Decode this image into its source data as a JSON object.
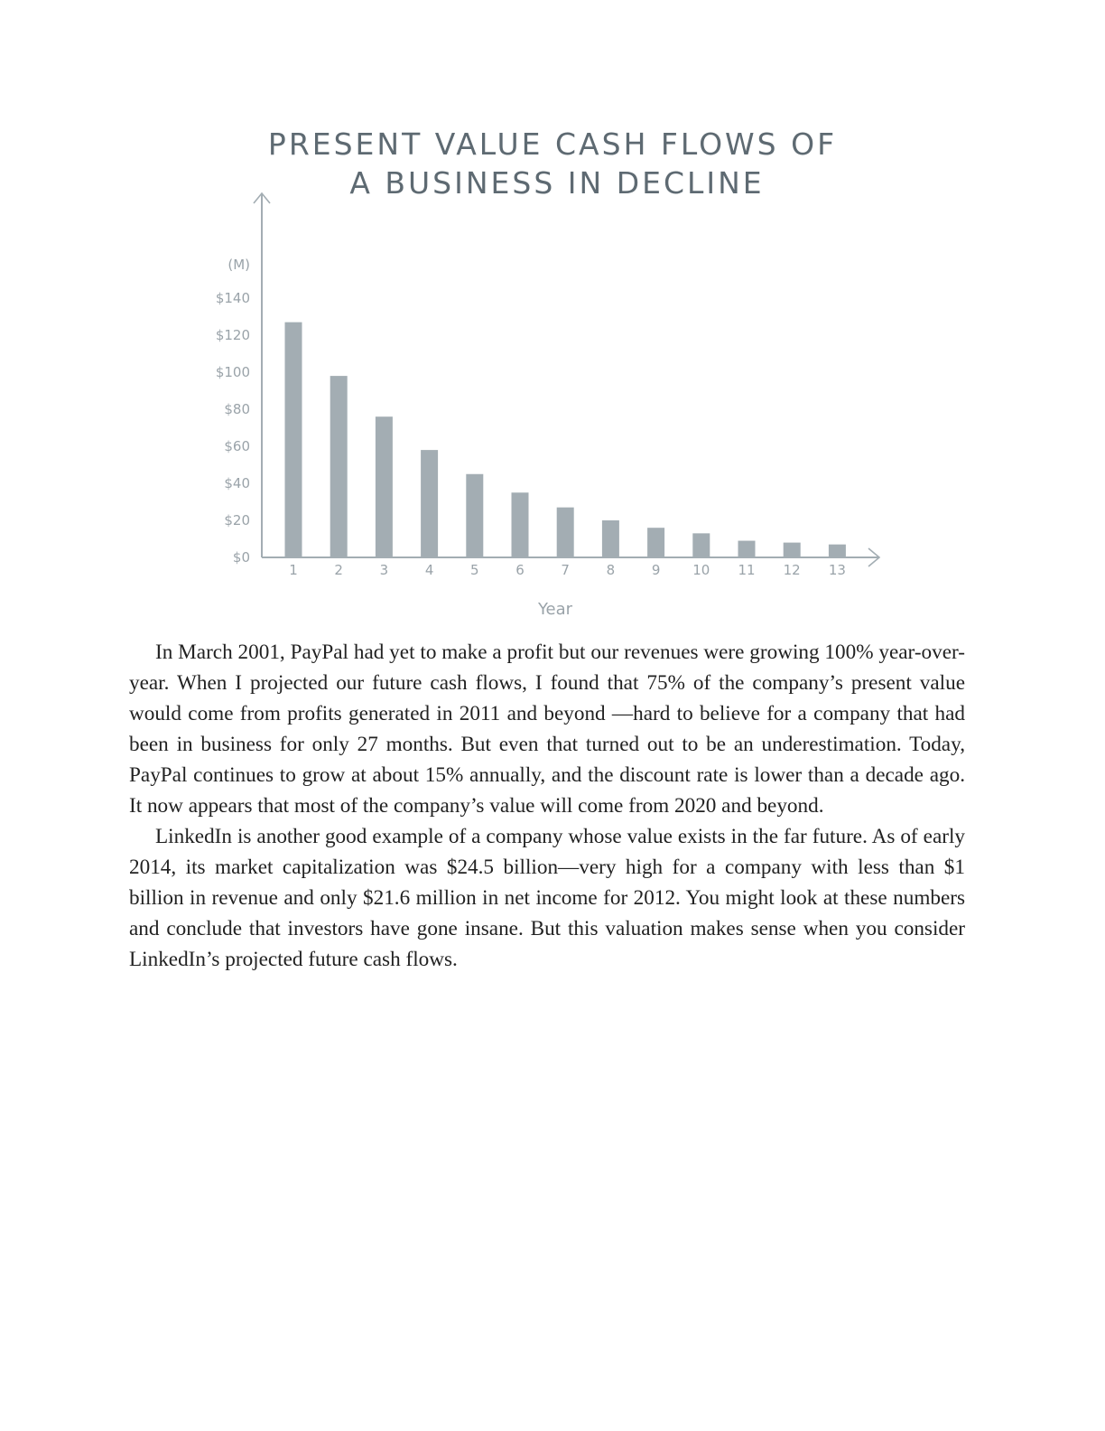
{
  "chart_data": {
    "type": "bar",
    "title_lines": [
      "PRESENT VALUE CASH FLOWS OF",
      "A BUSINESS IN DECLINE"
    ],
    "unit_label": "(M)",
    "xlabel": "Year",
    "ylabel": "",
    "categories": [
      "1",
      "2",
      "3",
      "4",
      "5",
      "6",
      "7",
      "8",
      "9",
      "10",
      "11",
      "12",
      "13"
    ],
    "values": [
      127,
      98,
      76,
      58,
      45,
      35,
      27,
      20,
      16,
      13,
      9,
      8,
      7
    ],
    "ylim": [
      0,
      140
    ],
    "yticks": [
      {
        "value": 0,
        "label": "$0"
      },
      {
        "value": 20,
        "label": "$20"
      },
      {
        "value": 40,
        "label": "$40"
      },
      {
        "value": 60,
        "label": "$60"
      },
      {
        "value": 80,
        "label": "$80"
      },
      {
        "value": 100,
        "label": "$100"
      },
      {
        "value": 120,
        "label": "$120"
      },
      {
        "value": 140,
        "label": "$140"
      }
    ],
    "grid": false,
    "bar_color": "#a3adb3",
    "axis_color": "#a3adb3"
  },
  "body": {
    "paragraphs": [
      "In March 2001, PayPal had yet to make a profit but our revenues were growing 100% year-over-year. When I projected our future cash flows, I found that 75% of the company’s present value would come from profits generated in 2011 and beyond —hard to believe for a company that had been in business for only 27 months. But even that turned out to be an underestimation. Today, PayPal continues to grow at about 15% annually, and the discount rate is lower than a decade ago. It now appears that most of the company’s value will come from 2020 and beyond.",
      "LinkedIn is another good example of a company whose value exists in the far future. As of early 2014, its market capitalization was $24.5 billion—very high for a company with less than $1 billion in revenue and only $21.6 million in net income for 2012. You might look at these numbers and conclude that investors have gone insane. But this valuation makes sense when you consider LinkedIn’s projected future cash flows."
    ]
  }
}
